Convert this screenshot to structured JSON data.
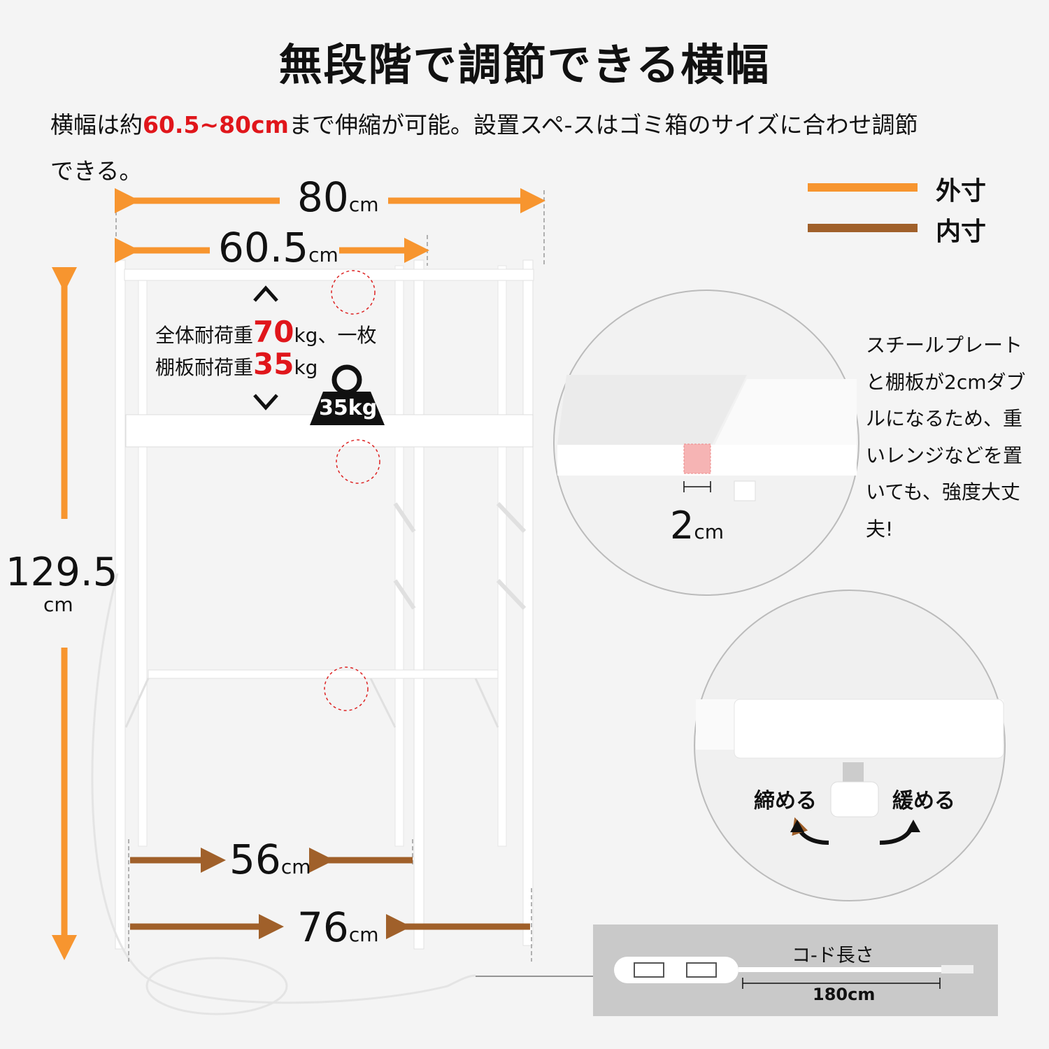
{
  "title": "無段階で調節できる横幅",
  "subtitle": {
    "prefix": "横幅は約",
    "highlight": "60.5~80cm",
    "suffix": "まで伸縮が可能。設置スペ-スはゴミ箱のサイズに合わせ調節",
    "line2": "できる。"
  },
  "legend": {
    "outer": {
      "label": "外寸",
      "color": "#f7952f"
    },
    "inner": {
      "label": "内寸",
      "color": "#a0602a"
    }
  },
  "dimensions": {
    "outer_width": "80",
    "inner_width_top": "60.5",
    "bottom_inner": "56",
    "bottom_outer": "76",
    "height": "129.5",
    "unit": "cm"
  },
  "load": {
    "line1_prefix": "全体耐荷重",
    "total": "70",
    "line1_suffix": "kg、一枚",
    "line2_prefix": "棚板耐荷重",
    "per_shelf": "35",
    "line2_suffix": "kg",
    "weight_icon_label": "35kg"
  },
  "detail_circle_1": {
    "thickness": "2",
    "unit": "cm"
  },
  "side_text": "スチールプレートと棚板が2cmダブルになるため、重いレンジなどを置いても、強度大丈夫!",
  "detail_circle_2": {
    "tighten": "締める",
    "loosen": "緩める"
  },
  "cord": {
    "label": "コ-ド長さ",
    "length": "180cm"
  }
}
